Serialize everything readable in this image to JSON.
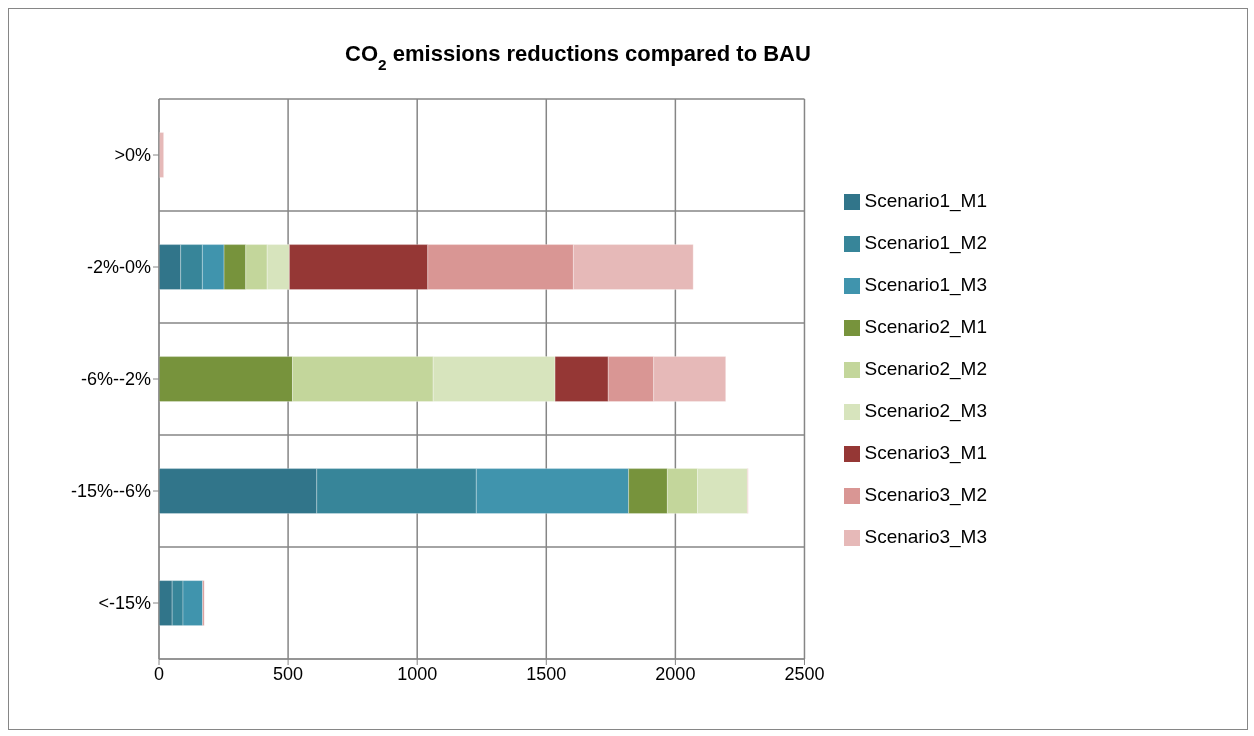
{
  "chart_data": {
    "type": "bar",
    "orientation": "horizontal",
    "stacked": true,
    "title": "CO$_{2}$ emissions reductions compared to BAU",
    "categories": [
      ">0%",
      "-2%-0%",
      "-6%--2%",
      "-15%--6%",
      "<-15%"
    ],
    "series": [
      {
        "name": "Scenario1_M1",
        "color": "#31758a",
        "values": [
          0,
          84,
          0,
          611,
          51
        ]
      },
      {
        "name": "Scenario1_M2",
        "color": "#378599",
        "values": [
          0,
          84,
          0,
          618,
          42
        ]
      },
      {
        "name": "Scenario1_M3",
        "color": "#4094ad",
        "values": [
          0,
          84,
          null,
          590,
          76
        ]
      },
      {
        "name": "Scenario2_M1",
        "color": "#77933c",
        "values": [
          0,
          84,
          517,
          150,
          0
        ]
      },
      {
        "name": "Scenario2_M2",
        "color": "#c3d69b",
        "values": [
          0,
          83,
          545,
          117,
          0
        ]
      },
      {
        "name": "Scenario2_M3",
        "color": "#d7e4bd",
        "values": [
          0,
          86,
          472,
          193,
          null
        ]
      },
      {
        "name": "Scenario3_M1",
        "color": "#953735",
        "values": [
          null,
          536,
          206,
          0,
          0
        ]
      },
      {
        "name": "Scenario3_M2",
        "color": "#d99694",
        "values": [
          null,
          564,
          176,
          0,
          6
        ]
      },
      {
        "name": "Scenario3_M3",
        "color": "#e6b9b8",
        "values": [
          18,
          464,
          279,
          3,
          null
        ]
      }
    ],
    "xlim": [
      0,
      2500
    ],
    "xticks": [
      0,
      500,
      1000,
      1500,
      2000,
      2500
    ],
    "grid": true,
    "legend": "right"
  }
}
